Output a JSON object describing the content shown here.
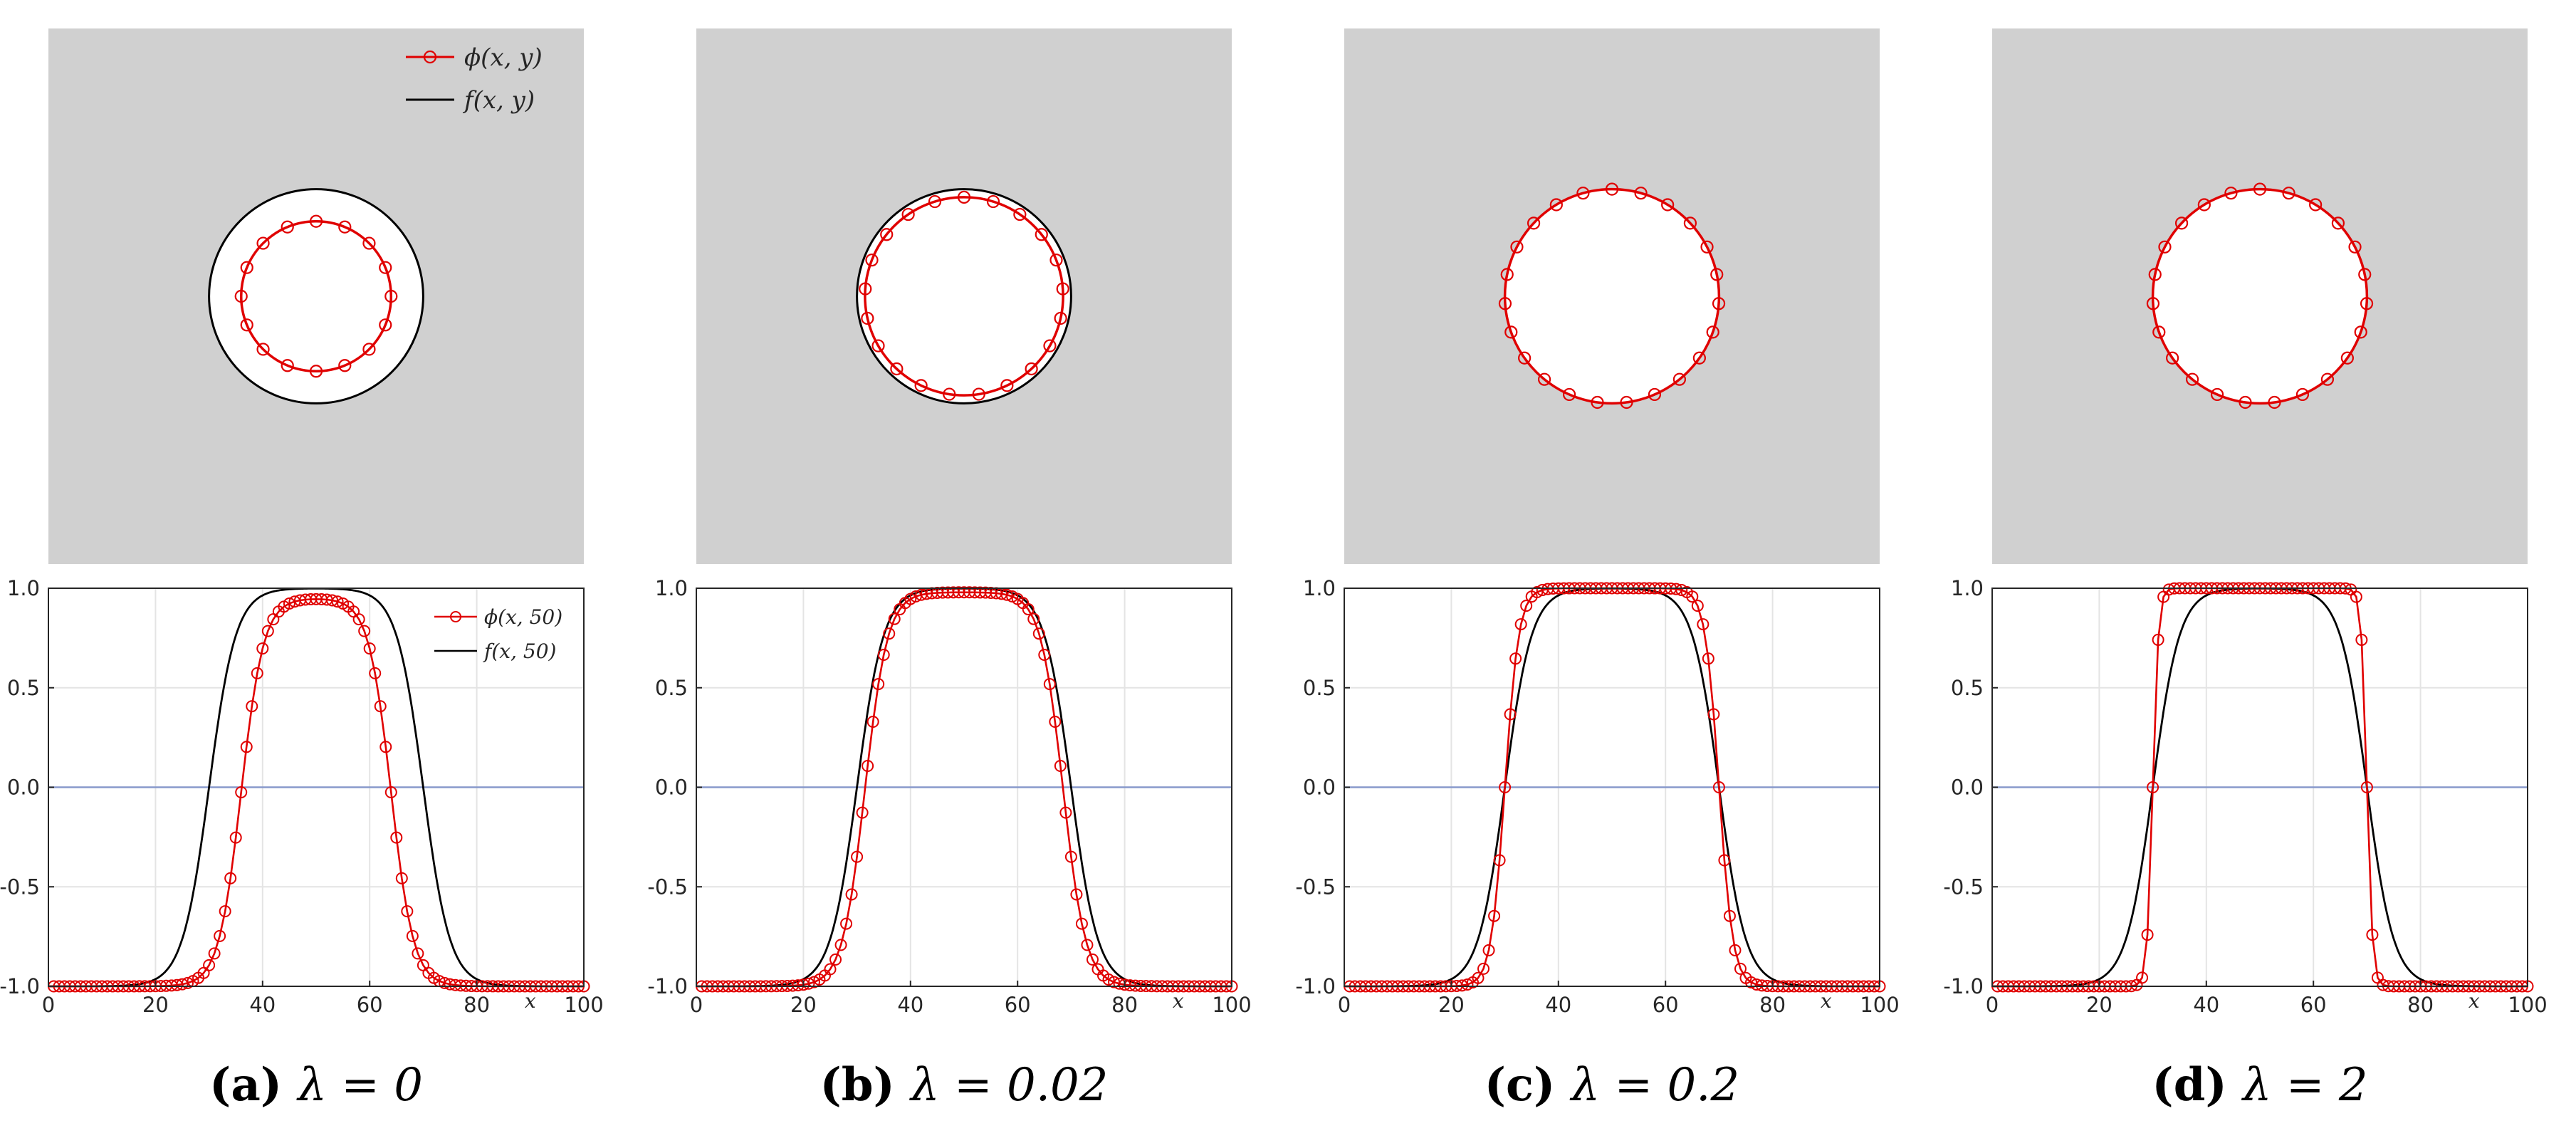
{
  "chart_data": [
    {
      "type": "contour",
      "panel": "a",
      "lambda": 0,
      "domain": [
        0,
        100
      ],
      "background_color": "#d0d0d0",
      "f_radius": 20,
      "phi_radius": 14,
      "phi_offset": [
        0,
        0
      ],
      "legend": [
        {
          "name": "ϕ(x, y)",
          "color": "#e00000",
          "marker": "o"
        },
        {
          "name": "f(x, y)",
          "color": "#000000",
          "marker": "none"
        }
      ]
    },
    {
      "type": "contour",
      "panel": "b",
      "lambda": 0.02,
      "domain": [
        0,
        100
      ],
      "background_color": "#d0d0d0",
      "f_radius": 20,
      "phi_radius": 18.5,
      "phi_offset": [
        0,
        0
      ],
      "legend": []
    },
    {
      "type": "contour",
      "panel": "c",
      "lambda": 0.2,
      "domain": [
        0,
        100
      ],
      "background_color": "#d0d0d0",
      "f_radius": 0,
      "phi_radius": 20,
      "phi_offset": [
        0,
        0
      ],
      "legend": []
    },
    {
      "type": "contour",
      "panel": "d",
      "lambda": 2,
      "domain": [
        0,
        100
      ],
      "background_color": "#d0d0d0",
      "f_radius": 0,
      "phi_radius": 20,
      "phi_offset": [
        0,
        0
      ],
      "legend": []
    },
    {
      "type": "line",
      "panel": "a",
      "lambda": 0,
      "xlim": [
        0,
        100
      ],
      "ylim": [
        -1,
        1
      ],
      "xticks": [
        0,
        20,
        40,
        60,
        80,
        100
      ],
      "yticks": [
        "1.0",
        "0.5",
        "0.0",
        "-0.5",
        "-1.0"
      ],
      "xlabel": "x",
      "grid": true,
      "zero_line_color": "#8899cc",
      "legend": [
        {
          "name": "ϕ(x, 50)",
          "color": "#e00000",
          "marker": "o"
        },
        {
          "name": "f(x, 50)",
          "color": "#000000",
          "marker": "none"
        }
      ],
      "series": [
        {
          "name": "f(x, 50)",
          "profile": "tanh_double",
          "center": 50,
          "half_width": 20,
          "width": 5,
          "amplitude": 1.0
        },
        {
          "name": "ϕ(x, 50)",
          "profile": "tanh_double",
          "center": 50,
          "half_width": 14,
          "width": 4.2,
          "amplitude": 0.95,
          "marker_every": 1
        }
      ]
    },
    {
      "type": "line",
      "panel": "b",
      "lambda": 0.02,
      "xlim": [
        0,
        100
      ],
      "ylim": [
        -1,
        1
      ],
      "xticks": [
        0,
        20,
        40,
        60,
        80,
        100
      ],
      "yticks": [
        "1.0",
        "0.5",
        "0.0",
        "-0.5",
        "-1.0"
      ],
      "xlabel": "x",
      "grid": true,
      "zero_line_color": "#8899cc",
      "legend": [],
      "series": [
        {
          "name": "f(x, 50)",
          "profile": "tanh_double",
          "center": 50,
          "half_width": 20,
          "width": 5,
          "amplitude": 1.0
        },
        {
          "name": "ϕ(x, 50)",
          "profile": "tanh_double",
          "center": 50,
          "half_width": 18.5,
          "width": 4.2,
          "amplitude": 0.98,
          "marker_every": 1
        }
      ]
    },
    {
      "type": "line",
      "panel": "c",
      "lambda": 0.2,
      "xlim": [
        0,
        100
      ],
      "ylim": [
        -1,
        1
      ],
      "xticks": [
        0,
        20,
        40,
        60,
        80,
        100
      ],
      "yticks": [
        "1.0",
        "0.5",
        "0.0",
        "-0.5",
        "-1.0"
      ],
      "xlabel": "x",
      "grid": true,
      "zero_line_color": "#8899cc",
      "legend": [],
      "series": [
        {
          "name": "f(x, 50)",
          "profile": "tanh_double",
          "center": 50,
          "half_width": 20,
          "width": 5,
          "amplitude": 1.0
        },
        {
          "name": "ϕ(x, 50)",
          "profile": "tanh_double",
          "center": 50,
          "half_width": 20,
          "width": 2.6,
          "amplitude": 1.0,
          "marker_every": 1
        }
      ]
    },
    {
      "type": "line",
      "panel": "d",
      "lambda": 2,
      "xlim": [
        0,
        100
      ],
      "ylim": [
        -1,
        1
      ],
      "xticks": [
        0,
        20,
        40,
        60,
        80,
        100
      ],
      "yticks": [
        "1.0",
        "0.5",
        "0.0",
        "-0.5",
        "-1.0"
      ],
      "xlabel": "x",
      "grid": true,
      "zero_line_color": "#8899cc",
      "legend": [],
      "series": [
        {
          "name": "f(x, 50)",
          "profile": "tanh_double",
          "center": 50,
          "half_width": 20,
          "width": 5,
          "amplitude": 1.0
        },
        {
          "name": "ϕ(x, 50)",
          "profile": "tanh_double",
          "center": 50,
          "half_width": 20,
          "width": 1.05,
          "amplitude": 1.0,
          "marker_every": 1
        }
      ]
    }
  ],
  "captions": [
    {
      "label": "(a)",
      "expr": "λ = 0"
    },
    {
      "label": "(b)",
      "expr": "λ = 0.02"
    },
    {
      "label": "(c)",
      "expr": "λ = 0.2"
    },
    {
      "label": "(d)",
      "expr": "λ = 2"
    }
  ]
}
